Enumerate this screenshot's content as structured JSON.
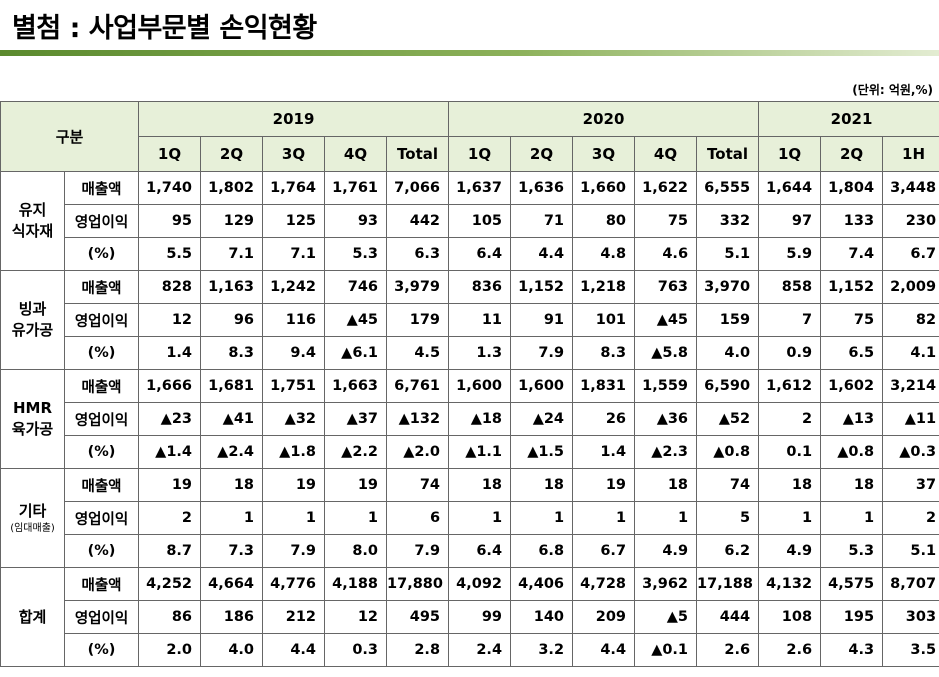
{
  "title": "별첨 : 사업부문별 손익현황",
  "unit_note": "(단위: 억원,%)",
  "header": {
    "gubun": "구분",
    "years": [
      {
        "label": "2019",
        "span": 5
      },
      {
        "label": "2020",
        "span": 5
      },
      {
        "label": "2021",
        "span": 3
      }
    ],
    "periods": [
      "1Q",
      "2Q",
      "3Q",
      "4Q",
      "Total",
      "1Q",
      "2Q",
      "3Q",
      "4Q",
      "Total",
      "1Q",
      "2Q",
      "1H"
    ]
  },
  "segments": [
    {
      "name": [
        "유지",
        "식자재"
      ],
      "sub": "",
      "rows": [
        {
          "metric": "매출액",
          "values": [
            "1,740",
            "1,802",
            "1,764",
            "1,761",
            "7,066",
            "1,637",
            "1,636",
            "1,660",
            "1,622",
            "6,555",
            "1,644",
            "1,804",
            "3,448"
          ]
        },
        {
          "metric": "영업이익",
          "values": [
            "95",
            "129",
            "125",
            "93",
            "442",
            "105",
            "71",
            "80",
            "75",
            "332",
            "97",
            "133",
            "230"
          ]
        },
        {
          "metric": "(%)",
          "values": [
            "5.5",
            "7.1",
            "7.1",
            "5.3",
            "6.3",
            "6.4",
            "4.4",
            "4.8",
            "4.6",
            "5.1",
            "5.9",
            "7.4",
            "6.7"
          ]
        }
      ]
    },
    {
      "name": [
        "빙과",
        "유가공"
      ],
      "sub": "",
      "rows": [
        {
          "metric": "매출액",
          "values": [
            "828",
            "1,163",
            "1,242",
            "746",
            "3,979",
            "836",
            "1,152",
            "1,218",
            "763",
            "3,970",
            "858",
            "1,152",
            "2,009"
          ]
        },
        {
          "metric": "영업이익",
          "values": [
            "12",
            "96",
            "116",
            "▲45",
            "179",
            "11",
            "91",
            "101",
            "▲45",
            "159",
            "7",
            "75",
            "82"
          ]
        },
        {
          "metric": "(%)",
          "values": [
            "1.4",
            "8.3",
            "9.4",
            "▲6.1",
            "4.5",
            "1.3",
            "7.9",
            "8.3",
            "▲5.8",
            "4.0",
            "0.9",
            "6.5",
            "4.1"
          ]
        }
      ]
    },
    {
      "name": [
        "HMR",
        "육가공"
      ],
      "sub": "",
      "rows": [
        {
          "metric": "매출액",
          "values": [
            "1,666",
            "1,681",
            "1,751",
            "1,663",
            "6,761",
            "1,600",
            "1,600",
            "1,831",
            "1,559",
            "6,590",
            "1,612",
            "1,602",
            "3,214"
          ]
        },
        {
          "metric": "영업이익",
          "values": [
            "▲23",
            "▲41",
            "▲32",
            "▲37",
            "▲132",
            "▲18",
            "▲24",
            "26",
            "▲36",
            "▲52",
            "2",
            "▲13",
            "▲11"
          ]
        },
        {
          "metric": "(%)",
          "values": [
            "▲1.4",
            "▲2.4",
            "▲1.8",
            "▲2.2",
            "▲2.0",
            "▲1.1",
            "▲1.5",
            "1.4",
            "▲2.3",
            "▲0.8",
            "0.1",
            "▲0.8",
            "▲0.3"
          ]
        }
      ]
    },
    {
      "name": [
        "기타"
      ],
      "sub": "(임대매출)",
      "rows": [
        {
          "metric": "매출액",
          "values": [
            "19",
            "18",
            "19",
            "19",
            "74",
            "18",
            "18",
            "19",
            "18",
            "74",
            "18",
            "18",
            "37"
          ]
        },
        {
          "metric": "영업이익",
          "values": [
            "2",
            "1",
            "1",
            "1",
            "6",
            "1",
            "1",
            "1",
            "1",
            "5",
            "1",
            "1",
            "2"
          ]
        },
        {
          "metric": "(%)",
          "values": [
            "8.7",
            "7.3",
            "7.9",
            "8.0",
            "7.9",
            "6.4",
            "6.8",
            "6.7",
            "4.9",
            "6.2",
            "4.9",
            "5.3",
            "5.1"
          ]
        }
      ]
    },
    {
      "name": [
        "합계"
      ],
      "sub": "",
      "rows": [
        {
          "metric": "매출액",
          "values": [
            "4,252",
            "4,664",
            "4,776",
            "4,188",
            "17,880",
            "4,092",
            "4,406",
            "4,728",
            "3,962",
            "17,188",
            "4,132",
            "4,575",
            "8,707"
          ]
        },
        {
          "metric": "영업이익",
          "values": [
            "86",
            "186",
            "212",
            "12",
            "495",
            "99",
            "140",
            "209",
            "▲5",
            "444",
            "108",
            "195",
            "303"
          ]
        },
        {
          "metric": "(%)",
          "values": [
            "2.0",
            "4.0",
            "4.4",
            "0.3",
            "2.8",
            "2.4",
            "3.2",
            "4.4",
            "▲0.1",
            "2.6",
            "2.6",
            "4.3",
            "3.5"
          ]
        }
      ]
    }
  ]
}
